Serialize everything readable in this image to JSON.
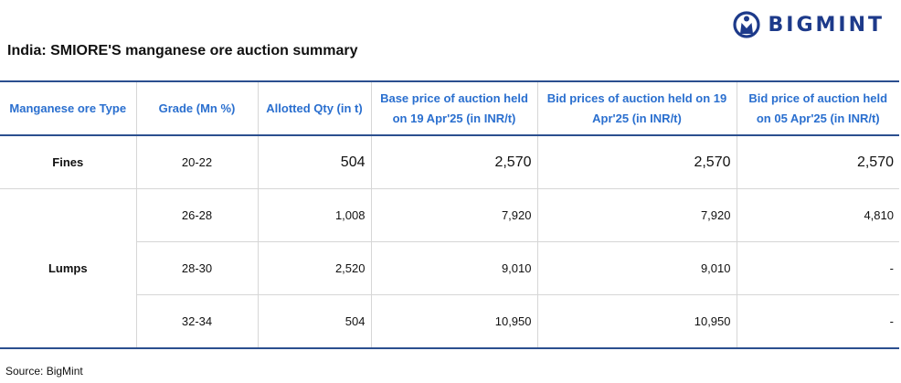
{
  "brand": {
    "name": "BIGMINT",
    "color": "#1d3a8a",
    "icon": "bigmint-logo-icon"
  },
  "title": "India:  SMIORE'S manganese ore auction summary",
  "table": {
    "headers": [
      "Manganese ore Type",
      "Grade (Mn %)",
      "Allotted Qty (in t)",
      "Base price of auction held on 19 Apr'25 (in INR/t)",
      "Bid prices of auction held on 19 Apr'25 (in INR/t)",
      "Bid price of auction held on 05 Apr'25 (in INR/t)"
    ],
    "groups": [
      {
        "type": "Fines",
        "rows": [
          {
            "grade": "20-22",
            "qty": "504",
            "base": "2,570",
            "bid": "2,570",
            "prev": "2,570"
          }
        ]
      },
      {
        "type": "Lumps",
        "rows": [
          {
            "grade": "26-28",
            "qty": "1,008",
            "base": "7,920",
            "bid": "7,920",
            "prev": "4,810"
          },
          {
            "grade": "28-30",
            "qty": "2,520",
            "base": "9,010",
            "bid": "9,010",
            "prev": "-"
          },
          {
            "grade": "32-34",
            "qty": "504",
            "base": "10,950",
            "bid": "10,950",
            "prev": "-"
          }
        ]
      }
    ]
  },
  "source": "Source: BigMint",
  "colors": {
    "header_text": "#2a6fcf",
    "rule": "#2b4f8f"
  }
}
